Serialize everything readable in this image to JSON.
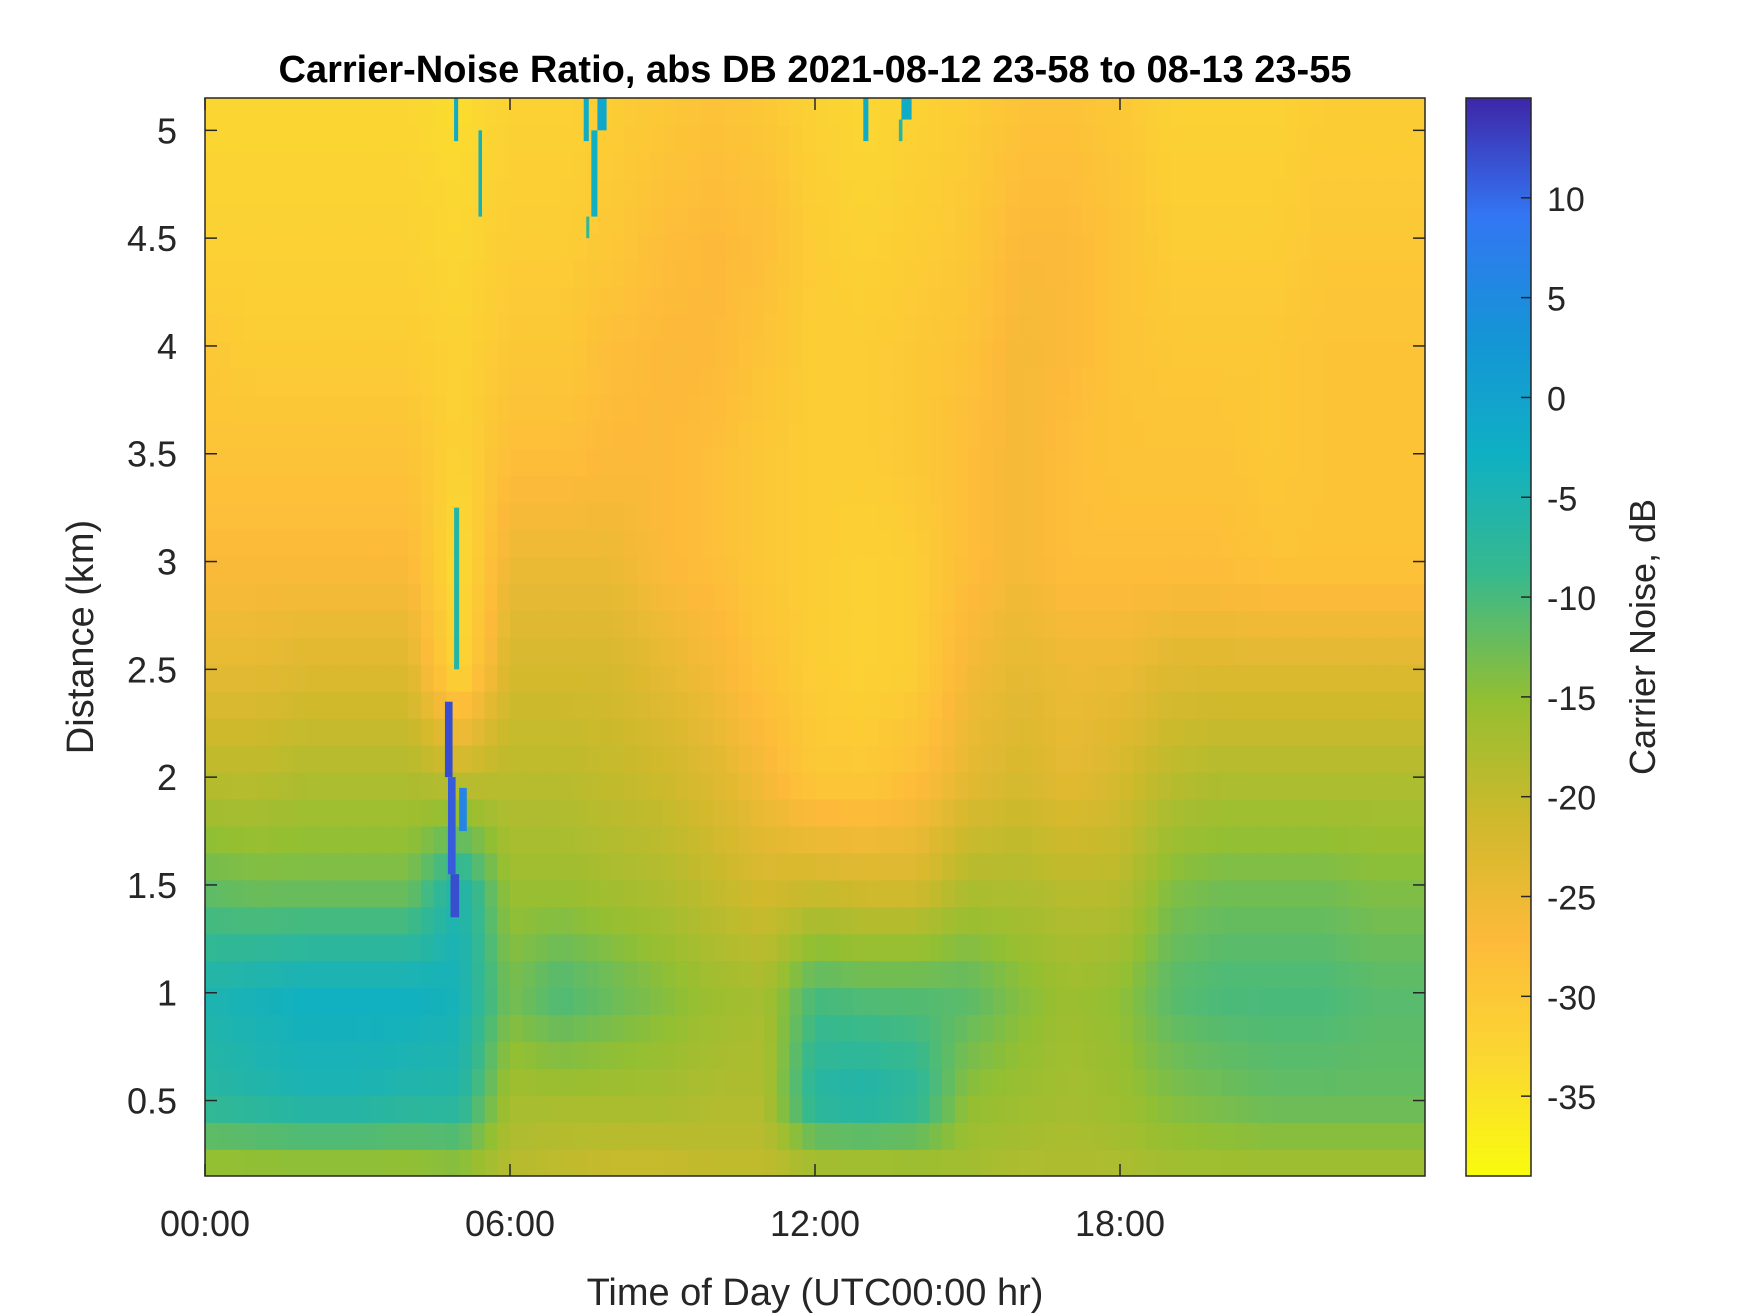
{
  "chart_data": {
    "type": "heatmap",
    "title": "Carrier-Noise Ratio, abs DB 2021-08-12 23-58 to 08-13 23-55",
    "xlabel": "Time of Day (UTC00:00 hr)",
    "ylabel": "Distance (km)",
    "colorbar_label": "Carrier Noise, dB",
    "colormap": "parula",
    "xlim": [
      0,
      24
    ],
    "ylim": [
      0.15,
      5.15
    ],
    "clim": [
      -39,
      15
    ],
    "x_ticks": [
      {
        "value": 0,
        "label": "00:00"
      },
      {
        "value": 6,
        "label": "06:00"
      },
      {
        "value": 12,
        "label": "12:00"
      },
      {
        "value": 18,
        "label": "18:00"
      }
    ],
    "y_ticks": [
      {
        "value": 0.5,
        "label": "0.5"
      },
      {
        "value": 1,
        "label": "1"
      },
      {
        "value": 1.5,
        "label": "1.5"
      },
      {
        "value": 2,
        "label": "2"
      },
      {
        "value": 2.5,
        "label": "2.5"
      },
      {
        "value": 3,
        "label": "3"
      },
      {
        "value": 3.5,
        "label": "3.5"
      },
      {
        "value": 4,
        "label": "4"
      },
      {
        "value": 4.5,
        "label": "4.5"
      },
      {
        "value": 5,
        "label": "5"
      }
    ],
    "colorbar_ticks": [
      {
        "value": 10,
        "label": "10"
      },
      {
        "value": 5,
        "label": "5"
      },
      {
        "value": 0,
        "label": "0"
      },
      {
        "value": -5,
        "label": "-5"
      },
      {
        "value": -10,
        "label": "-10"
      },
      {
        "value": -15,
        "label": "-15"
      },
      {
        "value": -20,
        "label": "-20"
      },
      {
        "value": -25,
        "label": "-25"
      },
      {
        "value": -30,
        "label": "-30"
      },
      {
        "value": -35,
        "label": "-35"
      }
    ],
    "x_hours": [
      0,
      1,
      2,
      3,
      4,
      5,
      6,
      7,
      8,
      9,
      10,
      11,
      12,
      13,
      14,
      15,
      16,
      17,
      18,
      19,
      20,
      21,
      22,
      23,
      24
    ],
    "y_km": [
      0.15,
      0.5,
      1.0,
      1.5,
      2.0,
      2.5,
      3.0,
      3.5,
      4.0,
      4.5,
      5.15
    ],
    "z_db": [
      [
        -17,
        -17,
        -17,
        -17,
        -17,
        -16,
        -19,
        -20,
        -21,
        -21,
        -20,
        -20,
        -19,
        -19,
        -18,
        -17,
        -18,
        -18,
        -18,
        -17,
        -17,
        -17,
        -17,
        -17,
        -17
      ],
      [
        -7,
        -6,
        -5,
        -5,
        -6,
        -6,
        -17,
        -17,
        -17,
        -17,
        -18,
        -18,
        -6,
        -5,
        -7,
        -15,
        -16,
        -17,
        -16,
        -14,
        -13,
        -12,
        -12,
        -12,
        -12
      ],
      [
        -5,
        -4,
        -3,
        -3,
        -3,
        -4,
        -13,
        -10,
        -12,
        -14,
        -16,
        -17,
        -10,
        -11,
        -11,
        -11,
        -14,
        -16,
        -15,
        -11,
        -10,
        -10,
        -10,
        -11,
        -11
      ],
      [
        -12,
        -13,
        -13,
        -13,
        -13,
        -5,
        -16,
        -16,
        -17,
        -18,
        -20,
        -22,
        -21,
        -22,
        -22,
        -18,
        -18,
        -19,
        -19,
        -14,
        -13,
        -13,
        -13,
        -14,
        -14
      ],
      [
        -19,
        -19,
        -18,
        -18,
        -18,
        -20,
        -19,
        -19,
        -20,
        -21,
        -23,
        -26,
        -30,
        -30,
        -28,
        -24,
        -22,
        -24,
        -22,
        -19,
        -18,
        -18,
        -18,
        -18,
        -18
      ],
      [
        -24,
        -24,
        -23,
        -23,
        -23,
        -33,
        -22,
        -22,
        -22,
        -24,
        -26,
        -29,
        -31,
        -32,
        -31,
        -26,
        -24,
        -25,
        -25,
        -23,
        -23,
        -23,
        -23,
        -23,
        -23
      ],
      [
        -27,
        -27,
        -27,
        -27,
        -27,
        -34,
        -25,
        -25,
        -25,
        -27,
        -28,
        -30,
        -31,
        -32,
        -31,
        -28,
        -26,
        -28,
        -28,
        -28,
        -28,
        -29,
        -29,
        -29,
        -29
      ],
      [
        -29,
        -29,
        -29,
        -29,
        -29,
        -32,
        -28,
        -28,
        -27,
        -27,
        -28,
        -30,
        -31,
        -31,
        -30,
        -28,
        -26,
        -28,
        -29,
        -29,
        -29,
        -30,
        -29,
        -29,
        -29
      ],
      [
        -30,
        -31,
        -31,
        -31,
        -31,
        -32,
        -30,
        -30,
        -28,
        -27,
        -27,
        -29,
        -31,
        -31,
        -30,
        -29,
        -26,
        -27,
        -29,
        -30,
        -30,
        -30,
        -29,
        -29,
        -29
      ],
      [
        -32,
        -32,
        -32,
        -32,
        -32,
        -33,
        -31,
        -31,
        -30,
        -28,
        -27,
        -28,
        -31,
        -32,
        -31,
        -30,
        -27,
        -27,
        -29,
        -31,
        -31,
        -31,
        -30,
        -30,
        -30
      ],
      [
        -33,
        -33,
        -33,
        -33,
        -33,
        -34,
        -32,
        -32,
        -31,
        -30,
        -29,
        -30,
        -32,
        -33,
        -32,
        -31,
        -29,
        -29,
        -30,
        -32,
        -32,
        -32,
        -31,
        -31,
        -31
      ]
    ],
    "streaks": [
      {
        "x_start": 4.72,
        "x_end": 4.87,
        "y_start": 2.0,
        "y_end": 2.35,
        "value": 12
      },
      {
        "x_start": 4.78,
        "x_end": 4.93,
        "y_start": 1.55,
        "y_end": 2.0,
        "value": 11
      },
      {
        "x_start": 4.83,
        "x_end": 5.0,
        "y_start": 1.35,
        "y_end": 1.55,
        "value": 12
      },
      {
        "x_start": 5.0,
        "x_end": 5.15,
        "y_start": 1.75,
        "y_end": 1.95,
        "value": 6
      },
      {
        "x_start": 4.9,
        "x_end": 5.0,
        "y_start": 2.5,
        "y_end": 3.25,
        "value": -6
      },
      {
        "x_start": 4.9,
        "x_end": 4.98,
        "y_start": 4.95,
        "y_end": 5.15,
        "value": -2
      },
      {
        "x_start": 5.38,
        "x_end": 5.45,
        "y_start": 4.6,
        "y_end": 5.0,
        "value": -4
      },
      {
        "x_start": 7.45,
        "x_end": 7.55,
        "y_start": 4.95,
        "y_end": 5.15,
        "value": -2
      },
      {
        "x_start": 7.6,
        "x_end": 7.72,
        "y_start": 4.6,
        "y_end": 5.0,
        "value": -3
      },
      {
        "x_start": 7.72,
        "x_end": 7.9,
        "y_start": 5.0,
        "y_end": 5.15,
        "value": -1
      },
      {
        "x_start": 7.5,
        "x_end": 7.56,
        "y_start": 4.5,
        "y_end": 4.6,
        "value": -8
      },
      {
        "x_start": 12.95,
        "x_end": 13.05,
        "y_start": 4.95,
        "y_end": 5.15,
        "value": -2
      },
      {
        "x_start": 13.7,
        "x_end": 13.9,
        "y_start": 5.05,
        "y_end": 5.15,
        "value": -2
      },
      {
        "x_start": 13.65,
        "x_end": 13.72,
        "y_start": 4.95,
        "y_end": 5.05,
        "value": -6
      }
    ]
  }
}
